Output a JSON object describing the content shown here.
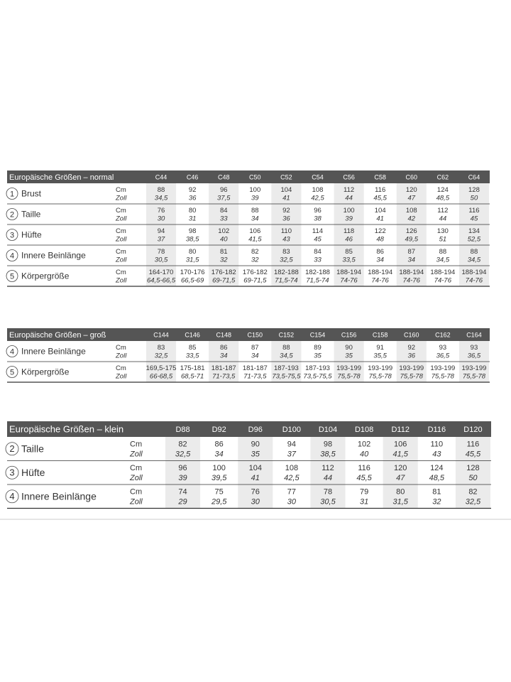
{
  "tables": [
    {
      "title": "Europäische Größen – normal",
      "columns": [
        "C44",
        "C46",
        "C48",
        "C50",
        "C52",
        "C54",
        "C56",
        "C58",
        "C60",
        "C62",
        "C64"
      ],
      "units": [
        "Cm",
        "Zoll"
      ],
      "rows": [
        {
          "num": "1",
          "label": "Brust",
          "cm": [
            "88",
            "92",
            "96",
            "100",
            "104",
            "108",
            "112",
            "116",
            "120",
            "124",
            "128"
          ],
          "zoll": [
            "34,5",
            "36",
            "37,5",
            "39",
            "41",
            "42,5",
            "44",
            "45,5",
            "47",
            "48,5",
            "50"
          ]
        },
        {
          "num": "2",
          "label": "Taille",
          "cm": [
            "76",
            "80",
            "84",
            "88",
            "92",
            "96",
            "100",
            "104",
            "108",
            "112",
            "116"
          ],
          "zoll": [
            "30",
            "31",
            "33",
            "34",
            "36",
            "38",
            "39",
            "41",
            "42",
            "44",
            "45"
          ]
        },
        {
          "num": "3",
          "label": "Hüfte",
          "cm": [
            "94",
            "98",
            "102",
            "106",
            "110",
            "114",
            "118",
            "122",
            "126",
            "130",
            "134"
          ],
          "zoll": [
            "37",
            "38,5",
            "40",
            "41,5",
            "43",
            "45",
            "46",
            "48",
            "49,5",
            "51",
            "52,5"
          ]
        },
        {
          "num": "4",
          "label": "Innere Beinlänge",
          "cm": [
            "78",
            "80",
            "81",
            "82",
            "83",
            "84",
            "85",
            "86",
            "87",
            "88",
            "88"
          ],
          "zoll": [
            "30,5",
            "31,5",
            "32",
            "32",
            "32,5",
            "33",
            "33,5",
            "34",
            "34",
            "34,5",
            "34,5"
          ]
        },
        {
          "num": "5",
          "label": "Körpergröße",
          "cm": [
            "164-170",
            "170-176",
            "176-182",
            "176-182",
            "182-188",
            "182-188",
            "188-194",
            "188-194",
            "188-194",
            "188-194",
            "188-194"
          ],
          "zoll": [
            "64,5-66,5",
            "66,5-69",
            "69-71,5",
            "69-71,5",
            "71,5-74",
            "71,5-74",
            "74-76",
            "74-76",
            "74-76",
            "74-76",
            "74-76"
          ]
        }
      ]
    },
    {
      "title": "Europäische Größen – groß",
      "columns": [
        "C144",
        "C146",
        "C148",
        "C150",
        "C152",
        "C154",
        "C156",
        "C158",
        "C160",
        "C162",
        "C164"
      ],
      "units": [
        "Cm",
        "Zoll"
      ],
      "rows": [
        {
          "num": "4",
          "label": "Innere Beinlänge",
          "cm": [
            "83",
            "85",
            "86",
            "87",
            "88",
            "89",
            "90",
            "91",
            "92",
            "93",
            "93"
          ],
          "zoll": [
            "32,5",
            "33,5",
            "34",
            "34",
            "34,5",
            "35",
            "35",
            "35,5",
            "36",
            "36,5",
            "36,5"
          ]
        },
        {
          "num": "5",
          "label": "Körpergröße",
          "cm": [
            "169,5-175",
            "175-181",
            "181-187",
            "181-187",
            "187-193",
            "187-193",
            "193-199",
            "193-199",
            "193-199",
            "193-199",
            "193-199"
          ],
          "zoll": [
            "66-68,5",
            "68,5-71",
            "71-73,5",
            "71-73,5",
            "73,5-75,5",
            "73,5-75,5",
            "75,5-78",
            "75,5-78",
            "75,5-78",
            "75,5-78",
            "75,5-78"
          ]
        }
      ]
    },
    {
      "title": "Europäische Größen – klein",
      "columns": [
        "D88",
        "D92",
        "D96",
        "D100",
        "D104",
        "D108",
        "D112",
        "D116",
        "D120"
      ],
      "units": [
        "Cm",
        "Zoll"
      ],
      "rows": [
        {
          "num": "2",
          "label": "Taille",
          "cm": [
            "82",
            "86",
            "90",
            "94",
            "98",
            "102",
            "106",
            "110",
            "116"
          ],
          "zoll": [
            "32,5",
            "34",
            "35",
            "37",
            "38,5",
            "40",
            "41,5",
            "43",
            "45,5"
          ]
        },
        {
          "num": "3",
          "label": "Hüfte",
          "cm": [
            "96",
            "100",
            "104",
            "108",
            "112",
            "116",
            "120",
            "124",
            "128"
          ],
          "zoll": [
            "39",
            "39,5",
            "41",
            "42,5",
            "44",
            "45,5",
            "47",
            "48,5",
            "50"
          ]
        },
        {
          "num": "4",
          "label": "Innere Beinlänge",
          "cm": [
            "74",
            "75",
            "76",
            "77",
            "78",
            "79",
            "80",
            "81",
            "82"
          ],
          "zoll": [
            "29",
            "29,5",
            "30",
            "30",
            "30,5",
            "31",
            "31,5",
            "32",
            "32,5"
          ]
        }
      ]
    }
  ]
}
